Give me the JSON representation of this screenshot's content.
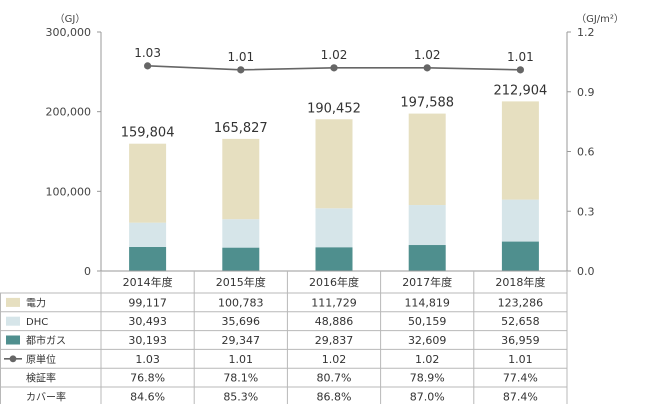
{
  "chart_data": {
    "type": "bar",
    "stacked": true,
    "categories": [
      "2014年度",
      "2015年度",
      "2016年度",
      "2017年度",
      "2018年度"
    ],
    "y_left_unit": "（GJ）",
    "y_right_unit": "（GJ/m²）",
    "y_left_ticks": [
      "300,000",
      "200,000",
      "100,000",
      "0"
    ],
    "y_right_ticks": [
      "1.2",
      "0.9",
      "0.6",
      "0.3",
      "0.0"
    ],
    "ylim": [
      0,
      300000
    ],
    "y2lim": [
      0,
      1.2
    ],
    "totals": [
      159804,
      165827,
      190452,
      197588,
      212904
    ],
    "total_labels": [
      "159,804",
      "165,827",
      "190,452",
      "197,588",
      "212,904"
    ],
    "series": [
      {
        "name": "都市ガス",
        "axis": "left",
        "values": [
          30193,
          29347,
          29837,
          32609,
          36959
        ],
        "labels": [
          "30,193",
          "29,347",
          "29,837",
          "32,609",
          "36,959"
        ],
        "color": "#4f8f8e"
      },
      {
        "name": "DHC",
        "axis": "left",
        "values": [
          30493,
          35696,
          48886,
          50159,
          52658
        ],
        "labels": [
          "30,493",
          "35,696",
          "48,886",
          "50,159",
          "52,658"
        ],
        "color": "#d6e5e9"
      },
      {
        "name": "電力",
        "axis": "left",
        "values": [
          99117,
          100783,
          111729,
          114819,
          123286
        ],
        "labels": [
          "99,117",
          "100,783",
          "111,729",
          "114,819",
          "123,286"
        ],
        "color": "#e6dfc0"
      },
      {
        "name": "原単位",
        "type": "line",
        "axis": "right",
        "values": [
          1.03,
          1.01,
          1.02,
          1.02,
          1.01
        ],
        "labels": [
          "1.03",
          "1.01",
          "1.02",
          "1.02",
          "1.01"
        ],
        "color": "#666666"
      }
    ],
    "table_rows": [
      {
        "label": "電力",
        "legend": "swatch",
        "color": "#e6dfc0",
        "values": [
          "99,117",
          "100,783",
          "111,729",
          "114,819",
          "123,286"
        ]
      },
      {
        "label": "DHC",
        "legend": "swatch",
        "color": "#d6e5e9",
        "values": [
          "30,493",
          "35,696",
          "48,886",
          "50,159",
          "52,658"
        ]
      },
      {
        "label": "都市ガス",
        "legend": "swatch",
        "color": "#4f8f8e",
        "values": [
          "30,193",
          "29,347",
          "29,837",
          "32,609",
          "36,959"
        ]
      },
      {
        "label": "原単位",
        "legend": "line-marker",
        "color": "#666666",
        "values": [
          "1.03",
          "1.01",
          "1.02",
          "1.02",
          "1.01"
        ]
      },
      {
        "label": "検証率",
        "legend": "none",
        "values": [
          "76.8%",
          "78.1%",
          "80.7%",
          "78.9%",
          "77.4%"
        ]
      },
      {
        "label": "カバー率",
        "legend": "none",
        "values": [
          "84.6%",
          "85.3%",
          "86.8%",
          "87.0%",
          "87.4%"
        ]
      }
    ],
    "grid": false,
    "legend": "table-left"
  }
}
